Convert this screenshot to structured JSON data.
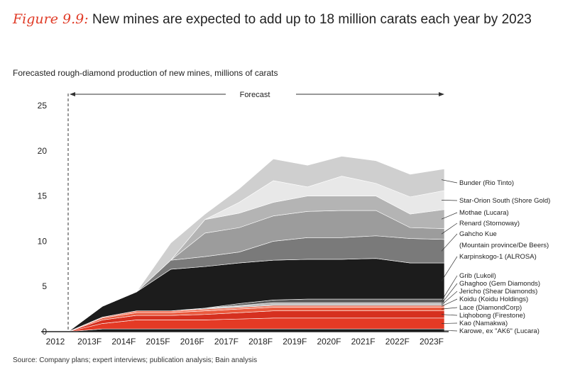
{
  "figure": {
    "number": "Figure 9.9:",
    "title": "New mines are expected to add up to 18 million carats each year by 2023",
    "subtitle": "Forecasted rough-diamond production of new mines, millions of carats",
    "source": "Source:  Company plans; expert interviews; publication analysis; Bain analysis"
  },
  "chart_data": {
    "type": "area",
    "title": "New mines are expected to add up to 18 million carats each year by 2023",
    "ylabel": "Forecasted rough-diamond production of new mines, millions of carats",
    "xlabel": "",
    "categories": [
      "2012",
      "2013F",
      "2014F",
      "2015F",
      "2016F",
      "2017F",
      "2018F",
      "2019F",
      "2020F",
      "2021F",
      "2022F",
      "2023F"
    ],
    "ylim": [
      0,
      25
    ],
    "yticks": [
      0,
      5,
      10,
      15,
      20,
      25
    ],
    "forecast_label": "Forecast",
    "stacked": true,
    "series": [
      {
        "name": "Karowe, ex \"AK6\" (Lucara)",
        "color": "#1a1a1a",
        "values": [
          0,
          0.3,
          0.3,
          0.3,
          0.3,
          0.3,
          0.3,
          0.3,
          0.3,
          0.3,
          0.3,
          0.3
        ]
      },
      {
        "name": "Kao (Namakwa)",
        "color": "#e43a25",
        "values": [
          0,
          0.6,
          1.0,
          1.0,
          1.0,
          1.1,
          1.2,
          1.2,
          1.2,
          1.2,
          1.2,
          1.2
        ]
      },
      {
        "name": "Liqhobong (Firestone)",
        "color": "#d6301f",
        "values": [
          0,
          0.4,
          0.5,
          0.5,
          0.6,
          0.7,
          0.8,
          0.8,
          0.8,
          0.8,
          0.8,
          0.8
        ]
      },
      {
        "name": "Lace (DiamondCorp)",
        "color": "#ea5a3e",
        "values": [
          0,
          0.2,
          0.3,
          0.3,
          0.4,
          0.4,
          0.4,
          0.4,
          0.4,
          0.4,
          0.4,
          0.4
        ]
      },
      {
        "name": "Koidu (Koidu Holdings)",
        "color": "#f07a62",
        "values": [
          0,
          0.1,
          0.2,
          0.2,
          0.2,
          0.2,
          0.2,
          0.2,
          0.2,
          0.2,
          0.2,
          0.2
        ]
      },
      {
        "name": "Jericho (Shear Diamonds)",
        "color": "#8a8a8a",
        "values": [
          0,
          0,
          0,
          0,
          0.1,
          0.1,
          0.1,
          0.1,
          0.1,
          0.1,
          0.1,
          0.1
        ]
      },
      {
        "name": "Ghaghoo (Gem Diamonds)",
        "color": "#b0b0b0",
        "values": [
          0,
          0,
          0,
          0,
          0,
          0.1,
          0.2,
          0.2,
          0.2,
          0.2,
          0.2,
          0.2
        ]
      },
      {
        "name": "Grib (Lukoil)",
        "color": "#5a5a5a",
        "values": [
          0,
          0,
          0,
          0,
          0,
          0.2,
          0.3,
          0.4,
          0.4,
          0.4,
          0.4,
          0.4
        ]
      },
      {
        "name": "Karpinskogo-1 (ALROSA)",
        "color": "#1c1c1c",
        "values": [
          0,
          1.2,
          2.1,
          4.6,
          4.6,
          4.5,
          4.4,
          4.4,
          4.4,
          4.5,
          4.0,
          4.0
        ]
      },
      {
        "name": "Gahcho Kue (Mountain province/De Beers)",
        "color": "#7a7a7a",
        "values": [
          0,
          0,
          0,
          1.0,
          1.1,
          1.2,
          2.1,
          2.4,
          2.4,
          2.5,
          2.7,
          2.6
        ]
      },
      {
        "name": "Renard (Stornoway)",
        "color": "#9c9c9c",
        "values": [
          0,
          0,
          0,
          0,
          2.6,
          2.7,
          2.8,
          2.9,
          3.0,
          2.8,
          1.2,
          1.2
        ]
      },
      {
        "name": "Mothae (Lucara)",
        "color": "#b4b4b4",
        "values": [
          0,
          0,
          0,
          0,
          1.5,
          1.6,
          1.5,
          1.7,
          1.6,
          1.6,
          1.5,
          2.1
        ]
      },
      {
        "name": "Star-Orion South (Shore Gold)",
        "color": "#e8e8e8",
        "values": [
          0,
          0,
          0,
          0,
          0,
          1.2,
          2.4,
          1.0,
          2.2,
          1.4,
          1.9,
          2.1
        ]
      },
      {
        "name": "Bunder (Rio Tinto)",
        "color": "#cfcfcf",
        "values": [
          0,
          0,
          0,
          1.9,
          0.6,
          1.5,
          2.4,
          2.4,
          2.2,
          2.5,
          2.5,
          2.4
        ]
      }
    ],
    "legend_placement": "right"
  }
}
